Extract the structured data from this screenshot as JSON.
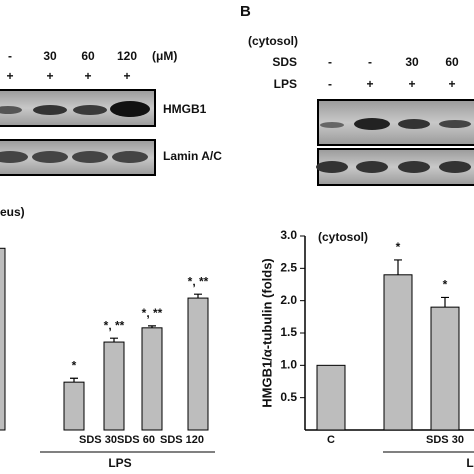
{
  "panel_a": {
    "sds_row": [
      "-",
      "30",
      "60",
      "120"
    ],
    "unit": "(μM)",
    "lps_row": [
      "+",
      "+",
      "+",
      "+"
    ],
    "blot_labels": [
      "HMGB1",
      "Lamin A/C"
    ]
  },
  "panel_b": {
    "letter": "B",
    "compartment": "(cytosol)",
    "sds_label": "SDS",
    "lps_label": "LPS",
    "sds_row": [
      "-",
      "-",
      "30",
      "60"
    ],
    "lps_row": [
      "-",
      "+",
      "+",
      "+"
    ]
  },
  "chart_data": [
    {
      "type": "bar",
      "title": "eus)",
      "categories": [
        null,
        null,
        "SDS 30",
        "SDS 60",
        "SDS 120"
      ],
      "values": [
        2.81,
        0.74,
        1.36,
        1.58,
        2.04
      ],
      "errors": [
        null,
        0.06,
        0.06,
        0.03,
        0.06
      ],
      "annotations": [
        null,
        "*",
        "*, **",
        "*, **",
        "*, **"
      ],
      "group_label": "LPS",
      "ylim": [
        0,
        3
      ],
      "color": "#bdbdbd"
    },
    {
      "type": "bar",
      "title": "(cytosol)",
      "y_label": "HMGB1/α-tubulin (folds)",
      "categories": [
        "C",
        null,
        "SDS 30"
      ],
      "values": [
        1.0,
        2.4,
        1.9
      ],
      "errors": [
        null,
        0.23,
        0.15
      ],
      "annotations": [
        null,
        "*",
        "*"
      ],
      "group_label": "LPS",
      "ylim": [
        0,
        3
      ],
      "yticks": [
        {
          "value": 0.5,
          "label": "0.5"
        },
        {
          "value": 1.0,
          "label": "1.0"
        },
        {
          "value": 1.5,
          "label": "1.5"
        },
        {
          "value": 2.0,
          "label": "2.0"
        },
        {
          "value": 2.5,
          "label": "2.5"
        },
        {
          "value": 3.0,
          "label": "3.0"
        }
      ],
      "color": "#bdbdbd"
    }
  ]
}
